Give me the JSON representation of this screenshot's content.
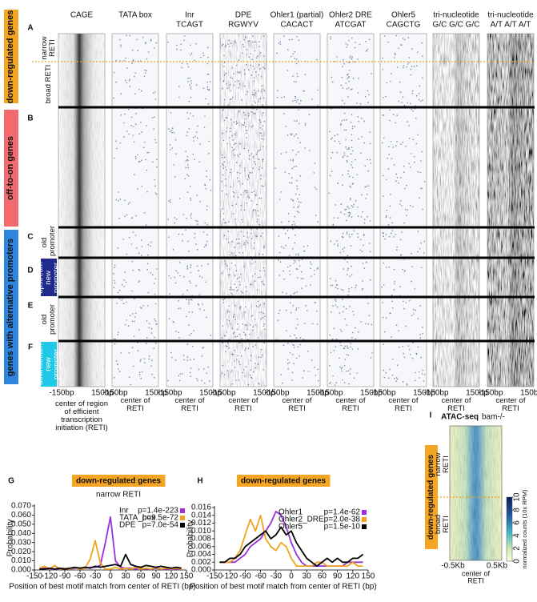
{
  "figure_top": {
    "letters": [
      "A",
      "B",
      "C",
      "D",
      "E",
      "F"
    ],
    "groups": [
      "down-regulated genes",
      "off-to-on genes",
      "genes with alternative promoters"
    ],
    "row_labels": [
      "narrow RETI",
      "broad RETI",
      "old promoter",
      "upstream new promoter",
      "old promoter",
      "downstream new promoter"
    ],
    "columns": [
      {
        "line1": "CAGE"
      },
      {
        "line1": "TATA box"
      },
      {
        "line1": "Inr",
        "line2": "TCAGT"
      },
      {
        "line1": "DPE",
        "line2": "RGWYV"
      },
      {
        "line1": "Ohler1 (partial)",
        "line2": "CACACT"
      },
      {
        "line1": "Ohler2 DRE",
        "line2": "ATCGAT"
      },
      {
        "line1": "Ohler5",
        "line2": "CAGCTG"
      },
      {
        "line1": "tri-nucleotide",
        "line2": "G/C G/C G/C"
      },
      {
        "line1": "tri-nucleotide",
        "line2": "A/T A/T A/T"
      }
    ],
    "axis_left": "-150bp",
    "axis_right": "150bp",
    "axis_center": "center of RETI",
    "cage_axis_center": "center of region of efficient transcription initiation (RETI)"
  },
  "chart_data": [
    {
      "type": "line",
      "label": "G",
      "title": "down-regulated genes",
      "subtitle": "narrow RETI",
      "xlabel": "Position of best motif match from center of RETI (bp)",
      "ylabel": "Probability",
      "x": [
        -140,
        -130,
        -120,
        -110,
        -100,
        -90,
        -80,
        -70,
        -60,
        -50,
        -40,
        -30,
        -20,
        -10,
        0,
        10,
        20,
        30,
        40,
        50,
        60,
        70,
        80,
        90,
        100,
        110,
        120,
        130,
        140
      ],
      "xlim": [
        -150,
        150
      ],
      "xticks": [
        -150,
        -120,
        -90,
        -60,
        -30,
        0,
        30,
        60,
        90,
        120,
        150
      ],
      "ylim": [
        0,
        0.07
      ],
      "yticks": [
        {
          "value": 0,
          "label": "0.000"
        },
        {
          "value": 0.01,
          "label": "0.010"
        },
        {
          "value": 0.02,
          "label": "0.020"
        },
        {
          "value": 0.03,
          "label": "0.030"
        },
        {
          "value": 0.04,
          "label": "0.040"
        },
        {
          "value": 0.05,
          "label": "0.050"
        },
        {
          "value": 0.06,
          "label": "0.060"
        },
        {
          "value": 0.07,
          "label": "0.070"
        }
      ],
      "legend": "upper right",
      "series": [
        {
          "name": "Inr",
          "p_value": "p=1.4e-223",
          "color": "#9b30d9",
          "values": [
            0.001,
            0.002,
            0.001,
            0.001,
            0.001,
            0.002,
            0.001,
            0.002,
            0.002,
            0.002,
            0.003,
            0.003,
            0.005,
            0.03,
            0.058,
            0.01,
            0.003,
            0.002,
            0.002,
            0.001,
            0.002,
            0.001,
            0.001,
            0.002,
            0.001,
            0.001,
            0.001,
            0.001,
            0.001
          ]
        },
        {
          "name": "TATA_box",
          "p_value": "p=9.5e-72",
          "color": "#f0a31c",
          "values": [
            0.002,
            0.004,
            0.001,
            0.005,
            0.001,
            0.002,
            0.001,
            0.003,
            0.001,
            0.002,
            0.012,
            0.032,
            0.008,
            0.001,
            0.001,
            0.003,
            0.001,
            0.002,
            0.001,
            0.003,
            0.001,
            0.002,
            0.001,
            0.003,
            0.001,
            0.002,
            0.001,
            0.002,
            0.001
          ]
        },
        {
          "name": "DPE",
          "p_value": "p=7.0e-54",
          "color": "#000000",
          "values": [
            0.001,
            0.001,
            0.002,
            0.001,
            0.002,
            0.001,
            0.002,
            0.003,
            0.002,
            0.003,
            0.002,
            0.004,
            0.003,
            0.004,
            0.005,
            0.006,
            0.004,
            0.017,
            0.006,
            0.004,
            0.003,
            0.005,
            0.004,
            0.003,
            0.004,
            0.003,
            0.002,
            0.003,
            0.002
          ]
        }
      ]
    },
    {
      "type": "line",
      "label": "H",
      "title": "down-regulated genes",
      "xlabel": "Position of best motif match from center of RETI (bp)",
      "ylabel": "Probability",
      "x": [
        -140,
        -130,
        -120,
        -110,
        -100,
        -90,
        -80,
        -70,
        -60,
        -50,
        -40,
        -30,
        -20,
        -10,
        0,
        10,
        20,
        30,
        40,
        50,
        60,
        70,
        80,
        90,
        100,
        110,
        120,
        130,
        140
      ],
      "xlim": [
        -150,
        150
      ],
      "xticks": [
        -150,
        -120,
        -90,
        -60,
        -30,
        0,
        30,
        60,
        90,
        120,
        150
      ],
      "ylim": [
        0,
        0.016
      ],
      "yticks": [
        {
          "value": 0,
          "label": "0.000"
        },
        {
          "value": 0.002,
          "label": "0.002"
        },
        {
          "value": 0.004,
          "label": "0.004"
        },
        {
          "value": 0.006,
          "label": "0.006"
        },
        {
          "value": 0.008,
          "label": "0.008"
        },
        {
          "value": 0.01,
          "label": "0.010"
        },
        {
          "value": 0.012,
          "label": "0.012"
        },
        {
          "value": 0.014,
          "label": "0.014"
        },
        {
          "value": 0.016,
          "label": "0.016"
        }
      ],
      "legend": "upper right",
      "series": [
        {
          "name": "Ohler1",
          "p_value": "p=1.4e-62",
          "color": "#9b30d9",
          "values": [
            0.002,
            0.002,
            0.002,
            0.002,
            0.003,
            0.004,
            0.006,
            0.007,
            0.008,
            0.01,
            0.012,
            0.015,
            0.014,
            0.011,
            0.007,
            0.004,
            0.002,
            0.001,
            0.001,
            0.001,
            0.001,
            0.001,
            0.001,
            0.001,
            0.001,
            0.002,
            0.002,
            0.002,
            0.002
          ]
        },
        {
          "name": "Ohler2_DRE",
          "p_value": "p=2.0e-38",
          "color": "#f0a31c",
          "values": [
            0.002,
            0.002,
            0.002,
            0.003,
            0.005,
            0.009,
            0.013,
            0.01,
            0.014,
            0.008,
            0.006,
            0.005,
            0.007,
            0.006,
            0.003,
            0.001,
            0.001,
            0.001,
            0.001,
            0.002,
            0.002,
            0.001,
            0.001,
            0.001,
            0.001,
            0.001,
            0.002,
            0.001,
            0.001
          ]
        },
        {
          "name": "Ohler5",
          "p_value": "p=1.5e-10",
          "color": "#000000",
          "values": [
            0.002,
            0.002,
            0.003,
            0.003,
            0.004,
            0.006,
            0.007,
            0.008,
            0.009,
            0.01,
            0.008,
            0.009,
            0.011,
            0.009,
            0.01,
            0.007,
            0.005,
            0.003,
            0.002,
            0.001,
            0.002,
            0.003,
            0.002,
            0.003,
            0.002,
            0.002,
            0.003,
            0.003,
            0.004
          ]
        }
      ]
    }
  ],
  "panel_i": {
    "letter": "I",
    "title": "ATAC-seq",
    "subtitle": "bam-/-",
    "group": "down-regulated genes",
    "row_labels": [
      "narrow RETI",
      "broad RETI"
    ],
    "x_left": "-0.5Kb",
    "x_right": "0.5Kb",
    "x_center": "center of RETI",
    "colorbar": {
      "label": "normalized counts (10x RPM)",
      "lim": [
        0,
        10
      ],
      "ticks": [
        0,
        2,
        4,
        6,
        8,
        10
      ]
    }
  }
}
